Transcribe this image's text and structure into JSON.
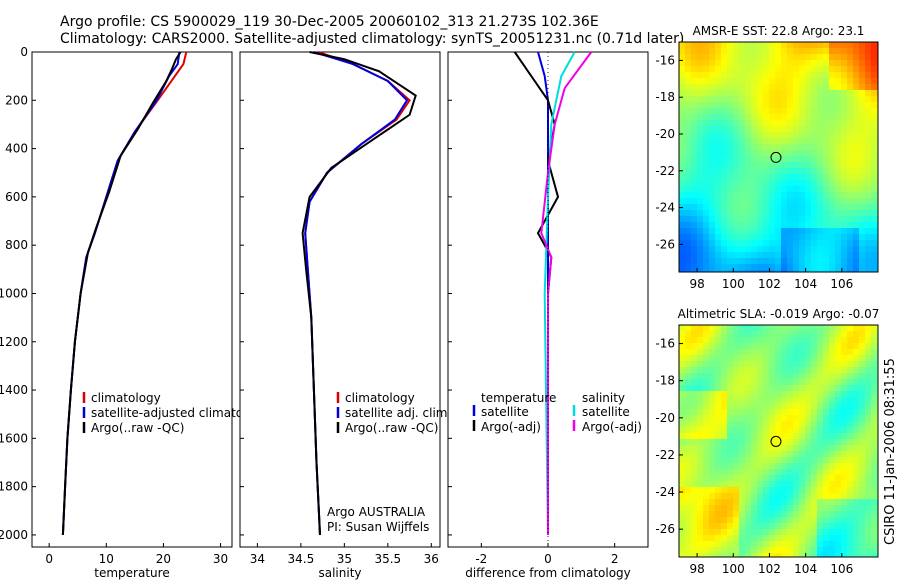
{
  "header": {
    "line1": "Argo profile: CS 5900029_119 30-Dec-2005 20060102_313 21.273S 102.36E",
    "line2": "Climatology: CARS2000. Satellite-adjusted climatology: synTS_20051231.nc (0.71d later)"
  },
  "footer_note": "CSIRO 11-Jan-2006 08:31:55",
  "colors": {
    "climatology": "#dd0000",
    "satellite": "#0000dd",
    "argo": "#000000",
    "sal_satellite": "#00dddd",
    "sal_argo": "#ee00ee"
  },
  "chart_data": [
    {
      "type": "line",
      "xlabel": "temperature",
      "ylim": [
        2050,
        0
      ],
      "xlim": [
        -3,
        32
      ],
      "xticks": [
        "0",
        "10",
        "20",
        "30"
      ],
      "yticks": [
        "0",
        "200",
        "400",
        "600",
        "800",
        "1000",
        "1200",
        "1400",
        "1600",
        "1800",
        "2000"
      ],
      "legend": [
        "climatology",
        "satellite-adjusted climatolog",
        "Argo(..raw -QC)"
      ],
      "series": [
        {
          "name": "climatology",
          "values": [
            [
              24,
              0
            ],
            [
              23.5,
              50
            ],
            [
              22,
              100
            ],
            [
              19,
              200
            ],
            [
              15,
              330
            ],
            [
              12,
              450
            ],
            [
              10,
              600
            ],
            [
              8,
              750
            ],
            [
              6.5,
              850
            ],
            [
              5.5,
              1000
            ],
            [
              4.5,
              1200
            ],
            [
              3.8,
              1400
            ],
            [
              3.2,
              1600
            ],
            [
              2.8,
              1800
            ],
            [
              2.4,
              2000
            ]
          ]
        },
        {
          "name": "satellite-adjusted climatolog",
          "values": [
            [
              22.8,
              0
            ],
            [
              22.5,
              50
            ],
            [
              21,
              100
            ],
            [
              18.8,
              200
            ],
            [
              15,
              330
            ],
            [
              12,
              450
            ],
            [
              10,
              600
            ],
            [
              8,
              750
            ],
            [
              6.5,
              850
            ],
            [
              5.5,
              1000
            ],
            [
              4.5,
              1200
            ],
            [
              3.8,
              1400
            ],
            [
              3.2,
              1600
            ],
            [
              2.8,
              1800
            ],
            [
              2.4,
              2000
            ]
          ]
        },
        {
          "name": "Argo(..raw -QC)",
          "values": [
            [
              23,
              0
            ],
            [
              22.2,
              30
            ],
            [
              21.5,
              70
            ],
            [
              20.5,
              120
            ],
            [
              18.2,
              210
            ],
            [
              15.5,
              320
            ],
            [
              12.5,
              430
            ],
            [
              10.5,
              580
            ],
            [
              8.2,
              730
            ],
            [
              6.8,
              830
            ],
            [
              5.5,
              1000
            ],
            [
              4.5,
              1200
            ],
            [
              3.8,
              1400
            ],
            [
              3.2,
              1600
            ],
            [
              2.8,
              1800
            ],
            [
              2.4,
              2000
            ]
          ]
        }
      ]
    },
    {
      "type": "line",
      "xlabel": "salinity",
      "ylim": [
        2050,
        0
      ],
      "xlim": [
        33.8,
        36.1
      ],
      "xticks": [
        "34",
        "34.5",
        "35",
        "35.5",
        "36"
      ],
      "legend": [
        "climatology",
        "satellite adj. clim.",
        "Argo(..raw -QC)"
      ],
      "annotations": [
        "Argo AUSTRALIA",
        "PI: Susan Wijffels"
      ],
      "series": [
        {
          "name": "climatology",
          "values": [
            [
              34.7,
              0
            ],
            [
              35.1,
              50
            ],
            [
              35.5,
              120
            ],
            [
              35.75,
              200
            ],
            [
              35.6,
              280
            ],
            [
              35.2,
              380
            ],
            [
              34.8,
              500
            ],
            [
              34.6,
              620
            ],
            [
              34.55,
              750
            ],
            [
              34.58,
              900
            ],
            [
              34.62,
              1100
            ],
            [
              34.65,
              1400
            ],
            [
              34.68,
              1700
            ],
            [
              34.72,
              2000
            ]
          ]
        },
        {
          "name": "satellite adj. clim.",
          "values": [
            [
              34.65,
              0
            ],
            [
              35.1,
              50
            ],
            [
              35.5,
              120
            ],
            [
              35.72,
              200
            ],
            [
              35.58,
              280
            ],
            [
              35.2,
              380
            ],
            [
              34.8,
              500
            ],
            [
              34.6,
              620
            ],
            [
              34.55,
              750
            ],
            [
              34.58,
              900
            ],
            [
              34.62,
              1100
            ],
            [
              34.65,
              1400
            ],
            [
              34.68,
              1700
            ],
            [
              34.72,
              2000
            ]
          ]
        },
        {
          "name": "Argo(..raw -QC)",
          "values": [
            [
              34.6,
              0
            ],
            [
              35.0,
              30
            ],
            [
              35.4,
              80
            ],
            [
              35.82,
              180
            ],
            [
              35.75,
              260
            ],
            [
              35.3,
              370
            ],
            [
              34.85,
              480
            ],
            [
              34.6,
              600
            ],
            [
              34.52,
              750
            ],
            [
              34.56,
              900
            ],
            [
              34.62,
              1100
            ],
            [
              34.65,
              1400
            ],
            [
              34.68,
              1700
            ],
            [
              34.72,
              2000
            ]
          ]
        }
      ]
    },
    {
      "type": "line",
      "xlabel": "difference from climatology",
      "ylim": [
        2050,
        0
      ],
      "xlim": [
        -3,
        3
      ],
      "xticks": [
        "-2",
        "0",
        "2"
      ],
      "legend": {
        "temperature": [
          "temperature",
          "satellite",
          "Argo(-adj)"
        ],
        "salinity": [
          "salinity",
          "satellite",
          "Argo(-adj)"
        ]
      },
      "series": [
        {
          "name": "temperature satellite",
          "values": [
            [
              -0.3,
              0
            ],
            [
              -0.1,
              100
            ],
            [
              0,
              200
            ],
            [
              0,
              400
            ],
            [
              0,
              800
            ],
            [
              0,
              2000
            ]
          ]
        },
        {
          "name": "temperature Argo(-adj)",
          "values": [
            [
              -1,
              0
            ],
            [
              -0.6,
              80
            ],
            [
              0,
              200
            ],
            [
              0.2,
              300
            ],
            [
              0,
              450
            ],
            [
              0.3,
              600
            ],
            [
              -0.3,
              750
            ],
            [
              0.1,
              850
            ],
            [
              0,
              1000
            ],
            [
              0,
              2000
            ]
          ]
        },
        {
          "name": "salinity satellite",
          "values": [
            [
              0.8,
              0
            ],
            [
              0.4,
              100
            ],
            [
              0.1,
              300
            ],
            [
              0,
              600
            ],
            [
              -0.1,
              1000
            ],
            [
              0,
              2000
            ]
          ]
        },
        {
          "name": "salinity Argo(-adj)",
          "values": [
            [
              1.3,
              0
            ],
            [
              0.5,
              150
            ],
            [
              0.2,
              300
            ],
            [
              0,
              500
            ],
            [
              -0.2,
              750
            ],
            [
              0.1,
              850
            ],
            [
              0,
              1000
            ],
            [
              0,
              2000
            ]
          ]
        }
      ]
    },
    {
      "type": "heatmap",
      "title": "AMSR-E SST: 22.8 Argo: 23.1",
      "xlim": [
        97,
        108
      ],
      "ylim": [
        -27.5,
        -15
      ],
      "xticks": [
        "98",
        "100",
        "102",
        "104",
        "106"
      ],
      "yticks": [
        "-16",
        "-18",
        "-20",
        "-22",
        "-24",
        "-26"
      ],
      "marker": {
        "lon": 102.36,
        "lat": -21.273
      }
    },
    {
      "type": "heatmap",
      "title": "Altimetric SLA: -0.019 Argo: -0.07",
      "xlim": [
        97,
        108
      ],
      "ylim": [
        -27.5,
        -15
      ],
      "xticks": [
        "98",
        "100",
        "102",
        "104",
        "106"
      ],
      "yticks": [
        "-16",
        "-18",
        "-20",
        "-22",
        "-24",
        "-26"
      ],
      "marker": {
        "lon": 102.36,
        "lat": -21.273
      }
    }
  ]
}
